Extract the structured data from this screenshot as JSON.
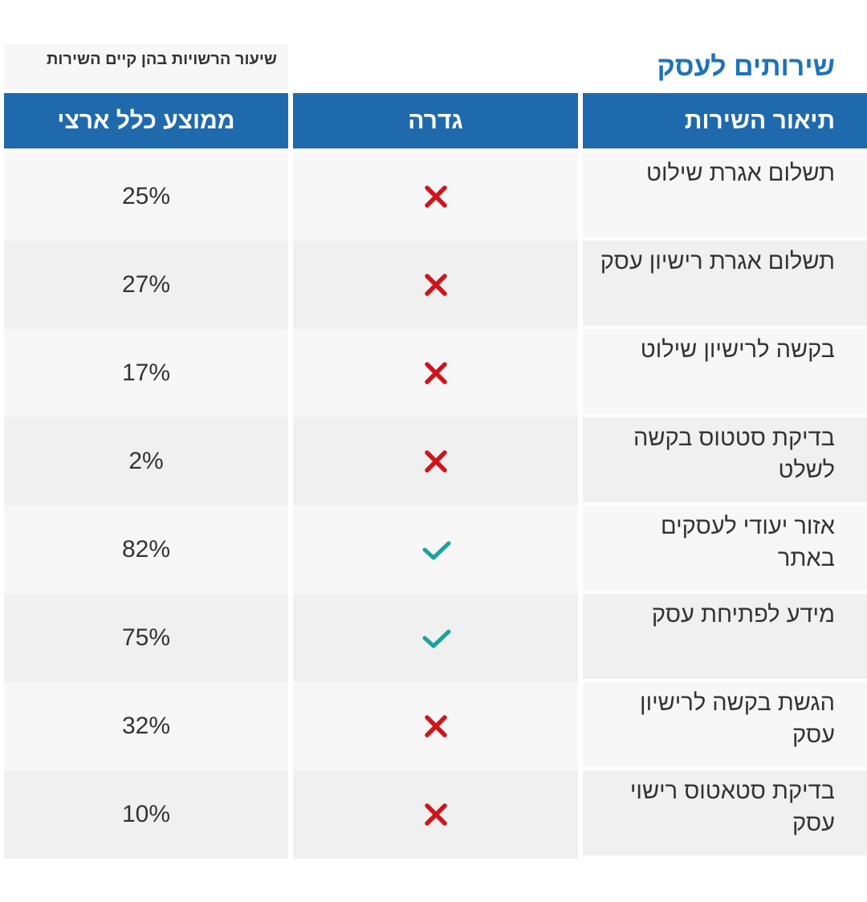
{
  "page": {
    "title": "שירותים לעסק",
    "subtitle": "שיעור הרשויות בהן קיים השירות"
  },
  "table": {
    "headers": {
      "description": "תיאור השירות",
      "gedera": "גדרה",
      "national_avg": "ממוצע כלל ארצי"
    },
    "rows": [
      {
        "description": "תשלום אגרת שילוט",
        "gedera": "x-icon",
        "national_avg": "25%"
      },
      {
        "description": "תשלום אגרת רישיון עסק",
        "gedera": "x-icon",
        "national_avg": "27%"
      },
      {
        "description": "בקשה לרישיון שילוט",
        "gedera": "x-icon",
        "national_avg": "17%"
      },
      {
        "description": "בדיקת סטטוס בקשה לשלט",
        "gedera": "x-icon",
        "national_avg": "2%"
      },
      {
        "description": "אזור יעודי לעסקים באתר",
        "gedera": "check-icon",
        "national_avg": "82%"
      },
      {
        "description": "מידע לפתיחת עסק",
        "gedera": "check-icon",
        "national_avg": "75%"
      },
      {
        "description": "הגשת בקשה לרישיון עסק",
        "gedera": "x-icon",
        "national_avg": "32%"
      },
      {
        "description": "בדיקת סטאטוס רישוי עסק",
        "gedera": "x-icon",
        "national_avg": "10%"
      }
    ]
  },
  "colors": {
    "header_bg": "#1f6aac",
    "title": "#1f73b8",
    "x_mark": "#d0141b",
    "check_mark": "#1aa3a0",
    "row_odd": "#f7f7f7",
    "row_even": "#f0f0f0"
  }
}
